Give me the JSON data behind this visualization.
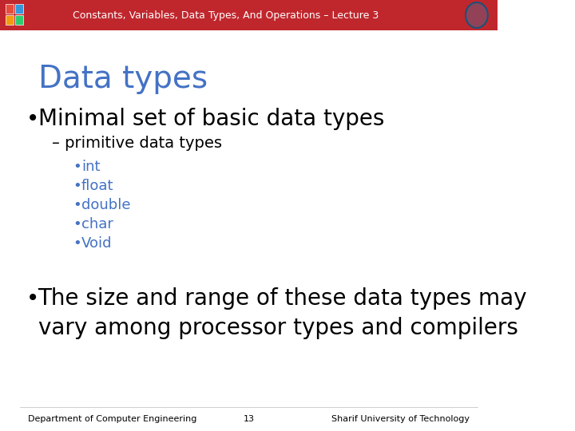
{
  "header_text": "Constants, Variables, Data Types, And Operations – Lecture 3",
  "header_bg_color": "#c0272d",
  "header_text_color": "#ffffff",
  "header_font_size": 9,
  "slide_bg_color": "#ffffff",
  "title": "Data types",
  "title_color": "#4472c4",
  "title_font_size": 28,
  "bullet1_text": "Minimal set of basic data types",
  "bullet1_color": "#000000",
  "bullet1_font_size": 20,
  "sub_bullet_text": "– primitive data types",
  "sub_bullet_color": "#000000",
  "sub_bullet_font_size": 14,
  "sub_items": [
    "int",
    "float",
    "double",
    "char",
    "Void"
  ],
  "sub_items_color": "#4472c4",
  "sub_items_font_size": 13,
  "bullet2_text": "The size and range of these data types may\nvary among processor types and compilers",
  "bullet2_color": "#000000",
  "bullet2_font_size": 20,
  "footer_left": "Department of Computer Engineering",
  "footer_center": "13",
  "footer_right": "Sharif University of Technology",
  "footer_color": "#000000",
  "footer_font_size": 8
}
